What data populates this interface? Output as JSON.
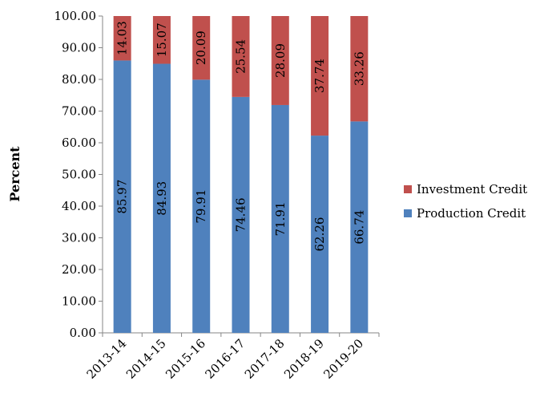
{
  "chart_data": {
    "type": "bar",
    "stacked": true,
    "categories": [
      "2013-14",
      "2014-15",
      "2015-16",
      "2016-17",
      "2017-18",
      "2018-19",
      "2019-20"
    ],
    "series": [
      {
        "name": "Production Credit",
        "color": "#4F81BD",
        "values": [
          85.97,
          84.93,
          79.91,
          74.46,
          71.91,
          62.26,
          66.74
        ]
      },
      {
        "name": "Investment Credit",
        "color": "#C0504D",
        "values": [
          14.03,
          15.07,
          20.09,
          25.54,
          28.09,
          37.74,
          33.26
        ]
      }
    ],
    "xlabel": "",
    "ylabel": "Percent",
    "ylim": [
      0,
      100
    ],
    "yticks": [
      "0.00",
      "10.00",
      "20.00",
      "30.00",
      "40.00",
      "50.00",
      "60.00",
      "70.00",
      "80.00",
      "90.00",
      "100.00"
    ],
    "data_labels": {
      "Production Credit": [
        "85.97",
        "84.93",
        "79.91",
        "74.46",
        "71.91",
        "62.26",
        "66.74"
      ],
      "Investment Credit": [
        "14.03",
        "15.07",
        "20.09",
        "25.54",
        "28.09",
        "37.74",
        "33.26"
      ]
    },
    "legend": {
      "position": "right",
      "items": [
        {
          "label": "Investment Credit",
          "color": "#C0504D"
        },
        {
          "label": "Production Credit",
          "color": "#4F81BD"
        }
      ]
    },
    "grid": false
  }
}
